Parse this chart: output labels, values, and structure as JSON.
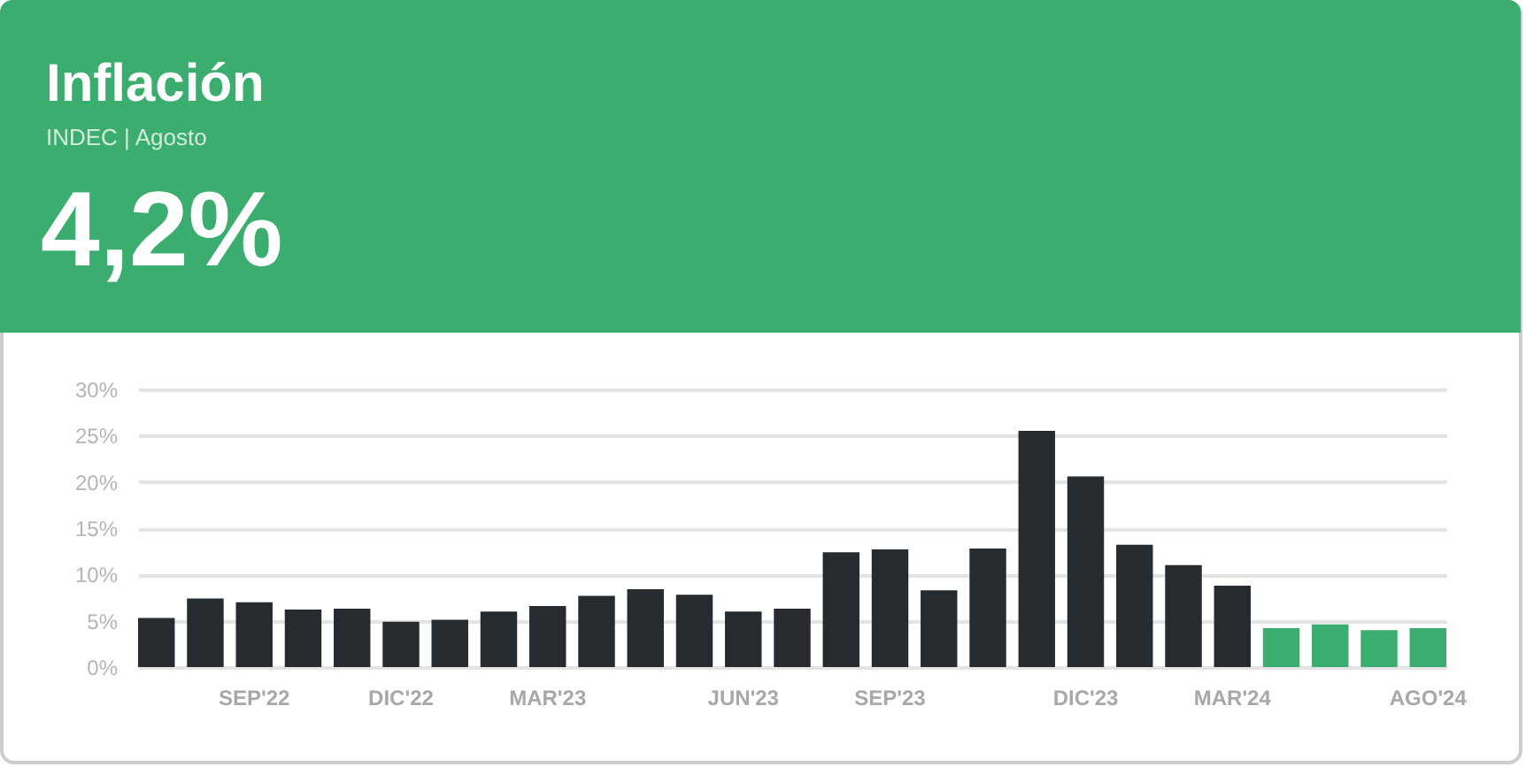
{
  "chart_data": {
    "type": "bar",
    "title": "Inflación",
    "subtitle": "INDEC | Agosto",
    "annotations": [
      "4,2%"
    ],
    "categories": [
      null,
      null,
      "SEP'22",
      null,
      null,
      "DIC'22",
      null,
      null,
      "MAR'23",
      null,
      null,
      null,
      "JUN'23",
      null,
      null,
      "SEP'23",
      null,
      null,
      null,
      "DIC'23",
      null,
      null,
      "MAR'24",
      null,
      null,
      null,
      "AGO'24"
    ],
    "values": [
      5.3,
      7.4,
      7.0,
      6.2,
      6.3,
      4.9,
      5.1,
      6.0,
      6.6,
      7.7,
      8.4,
      7.8,
      6.0,
      6.3,
      12.4,
      12.7,
      8.3,
      12.8,
      25.5,
      20.6,
      13.2,
      11.0,
      8.8,
      4.2,
      4.6,
      4.0,
      4.2
    ],
    "colors": [
      "#262b2f",
      "#262b2f",
      "#262b2f",
      "#262b2f",
      "#262b2f",
      "#262b2f",
      "#262b2f",
      "#262b2f",
      "#262b2f",
      "#262b2f",
      "#262b2f",
      "#262b2f",
      "#262b2f",
      "#262b2f",
      "#262b2f",
      "#262b2f",
      "#262b2f",
      "#262b2f",
      "#262b2f",
      "#262b2f",
      "#262b2f",
      "#262b2f",
      "#262b2f",
      "#3aad6f",
      "#3aad6f",
      "#3aad6f",
      "#3aad6f"
    ],
    "ylim": [
      0,
      30
    ],
    "yticks": [
      {
        "value": 0,
        "label": "0%"
      },
      {
        "value": 5,
        "label": "5%"
      },
      {
        "value": 10,
        "label": "10%"
      },
      {
        "value": 15,
        "label": "15%"
      },
      {
        "value": 20,
        "label": "20%"
      },
      {
        "value": 25,
        "label": "25%"
      },
      {
        "value": 30,
        "label": "30%"
      }
    ],
    "grid": "y"
  }
}
